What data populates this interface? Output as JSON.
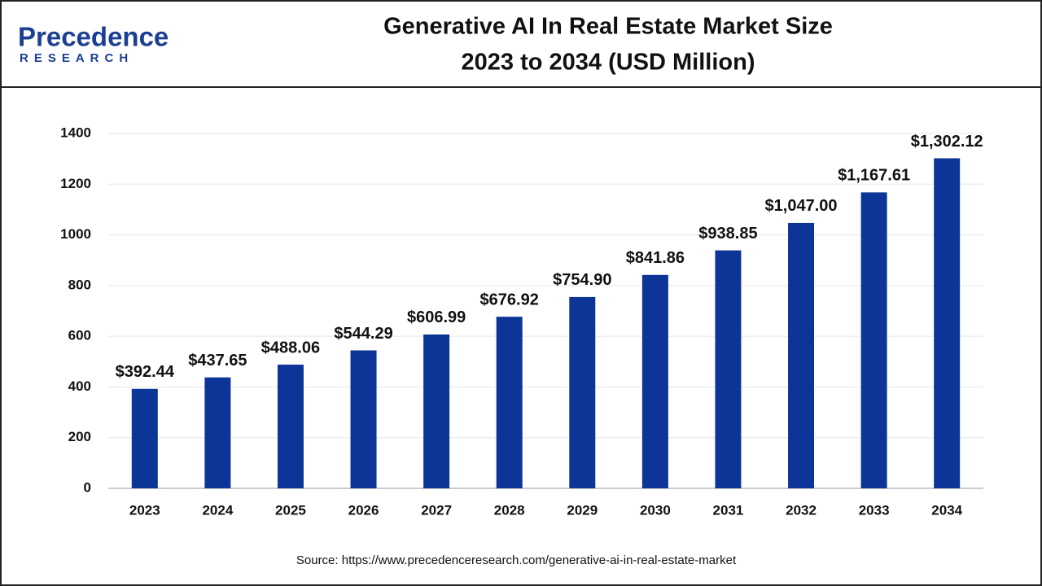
{
  "brand": {
    "name": "Precedence",
    "tagline": "RESEARCH"
  },
  "chart_data": {
    "type": "bar",
    "title": "Generative AI In Real Estate Market Size",
    "subtitle": "2023 to 2034 (USD Million)",
    "categories": [
      "2023",
      "2024",
      "2025",
      "2026",
      "2027",
      "2028",
      "2029",
      "2030",
      "2031",
      "2032",
      "2033",
      "2034"
    ],
    "values": [
      392.44,
      437.65,
      488.06,
      544.29,
      606.99,
      676.92,
      754.9,
      841.86,
      938.85,
      1047.0,
      1167.61,
      1302.12
    ],
    "value_labels": [
      "$392.44",
      "$437.65",
      "$488.06",
      "$544.29",
      "$606.99",
      "$676.92",
      "$754.90",
      "$841.86",
      "$938.85",
      "$1,047.00",
      "$1,167.61",
      "$1,302.12"
    ],
    "color": "#0d3597",
    "ylim": [
      0,
      1400
    ],
    "yticks": [
      0,
      200,
      400,
      600,
      800,
      1000,
      1200,
      1400
    ],
    "grid": true,
    "source": "Source: https://www.precedenceresearch.com/generative-ai-in-real-estate-market"
  }
}
